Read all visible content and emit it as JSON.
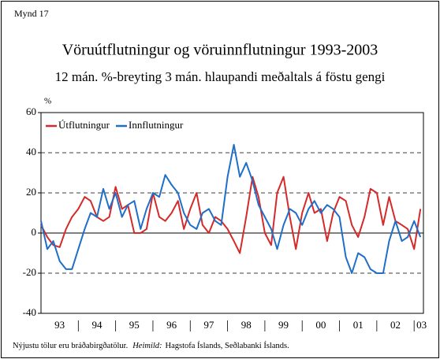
{
  "chart_data": {
    "type": "line",
    "figure_label": "Mynd 17",
    "title": "Vöruútflutningur og vöruinnflutningur 1993-2003",
    "subtitle": "12 mán. %-breyting 3 mán. hlaupandi meðaltals á föstu gengi",
    "y_label": "%",
    "footnote": {
      "text": "Nýjustu tölur eru bráðabirgðatölur.",
      "source_label": "Heimild:",
      "source": "Hagstofa Íslands, Seðlabanki Íslands."
    },
    "legend": "upper left",
    "grid": true,
    "xlim": [
      1993,
      2003.25
    ],
    "xticks": [
      {
        "value": 1993.5,
        "label": "93"
      },
      {
        "value": 1994.5,
        "label": "94"
      },
      {
        "value": 1995.5,
        "label": "95"
      },
      {
        "value": 1996.5,
        "label": "96"
      },
      {
        "value": 1997.5,
        "label": "97"
      },
      {
        "value": 1998.5,
        "label": "98"
      },
      {
        "value": 1999.5,
        "label": "99"
      },
      {
        "value": 2000.5,
        "label": "00"
      },
      {
        "value": 2001.5,
        "label": "01"
      },
      {
        "value": 2002.5,
        "label": "02"
      },
      {
        "value": 2003.2,
        "label": "03"
      }
    ],
    "ylim": [
      -40,
      60
    ],
    "yticks": [
      -40,
      -20,
      0,
      20,
      40,
      60
    ],
    "x": [
      1993.0,
      1993.17,
      1993.33,
      1993.5,
      1993.67,
      1993.83,
      1994.0,
      1994.17,
      1994.33,
      1994.5,
      1994.67,
      1994.83,
      1995.0,
      1995.17,
      1995.33,
      1995.5,
      1995.67,
      1995.83,
      1996.0,
      1996.17,
      1996.33,
      1996.5,
      1996.67,
      1996.83,
      1997.0,
      1997.17,
      1997.33,
      1997.5,
      1997.67,
      1997.83,
      1998.0,
      1998.17,
      1998.33,
      1998.5,
      1998.67,
      1998.83,
      1999.0,
      1999.17,
      1999.33,
      1999.5,
      1999.67,
      1999.83,
      2000.0,
      2000.17,
      2000.33,
      2000.5,
      2000.67,
      2000.83,
      2001.0,
      2001.17,
      2001.33,
      2001.5,
      2001.67,
      2001.83,
      2002.0,
      2002.17,
      2002.33,
      2002.5,
      2002.67,
      2002.83,
      2003.0,
      2003.17
    ],
    "series": [
      {
        "name": "Útflutningur",
        "color": "#d42a2a",
        "values": [
          4,
          -2,
          -6,
          -7,
          2,
          8,
          12,
          18,
          16,
          8,
          6,
          8,
          23,
          12,
          14,
          0,
          0,
          2,
          20,
          8,
          6,
          10,
          16,
          2,
          12,
          20,
          4,
          0,
          8,
          6,
          2,
          -4,
          -10,
          8,
          28,
          18,
          0,
          -6,
          20,
          28,
          8,
          -8,
          10,
          20,
          10,
          12,
          -4,
          10,
          18,
          16,
          4,
          -2,
          8,
          22,
          20,
          4,
          18,
          6,
          4,
          2,
          -8,
          12
        ]
      },
      {
        "name": "Innflutningur",
        "color": "#1f6fc8",
        "values": [
          6,
          -8,
          -4,
          -14,
          -18,
          -18,
          -8,
          2,
          10,
          8,
          22,
          12,
          20,
          8,
          14,
          16,
          2,
          12,
          20,
          18,
          29,
          24,
          20,
          10,
          4,
          2,
          10,
          12,
          6,
          4,
          28,
          44,
          28,
          35,
          26,
          14,
          8,
          2,
          -8,
          4,
          12,
          10,
          4,
          12,
          16,
          10,
          14,
          12,
          8,
          -12,
          -20,
          -10,
          -12,
          -18,
          -20,
          -20,
          -4,
          6,
          -4,
          -2,
          6,
          -2
        ]
      }
    ]
  }
}
